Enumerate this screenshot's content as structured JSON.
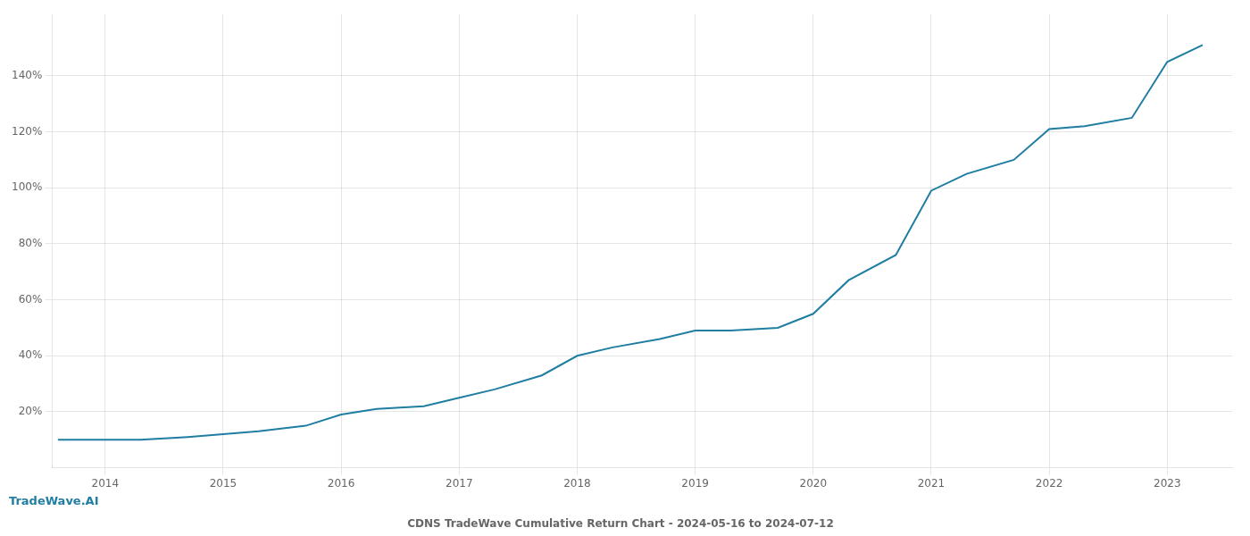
{
  "chart_data": {
    "type": "line",
    "title": "CDNS TradeWave Cumulative Return Chart - 2024-05-16 to 2024-07-12",
    "annotations": [
      "TradeWave.AI"
    ],
    "x": [
      2013.6,
      2014.0,
      2014.3,
      2014.7,
      2015.0,
      2015.3,
      2015.7,
      2016.0,
      2016.3,
      2016.7,
      2017.0,
      2017.3,
      2017.7,
      2018.0,
      2018.3,
      2018.7,
      2019.0,
      2019.3,
      2019.7,
      2020.0,
      2020.3,
      2020.7,
      2021.0,
      2021.3,
      2021.7,
      2022.0,
      2022.3,
      2022.7,
      2023.0,
      2023.3
    ],
    "values": [
      0.1,
      0.1,
      0.1,
      0.11,
      0.12,
      0.13,
      0.15,
      0.19,
      0.21,
      0.22,
      0.25,
      0.28,
      0.33,
      0.4,
      0.43,
      0.46,
      0.49,
      0.49,
      0.5,
      0.55,
      0.67,
      0.76,
      0.99,
      1.05,
      1.1,
      1.21,
      1.22,
      1.25,
      1.45,
      1.51
    ],
    "color": "#1f7ea1",
    "xlim": [
      2013.55,
      2023.55
    ],
    "xticks": [
      2014,
      2015,
      2016,
      2017,
      2018,
      2019,
      2020,
      2021,
      2022,
      2023
    ],
    "ylim": [
      0.0,
      1.62
    ],
    "yticks": [
      {
        "value": 0.2,
        "label": "20%"
      },
      {
        "value": 0.4,
        "label": "40%"
      },
      {
        "value": 0.6,
        "label": "60%"
      },
      {
        "value": 0.8,
        "label": "80%"
      },
      {
        "value": 1.0,
        "label": "100%"
      },
      {
        "value": 1.2,
        "label": "120%"
      },
      {
        "value": 1.4,
        "label": "140%"
      }
    ],
    "grid": true
  }
}
